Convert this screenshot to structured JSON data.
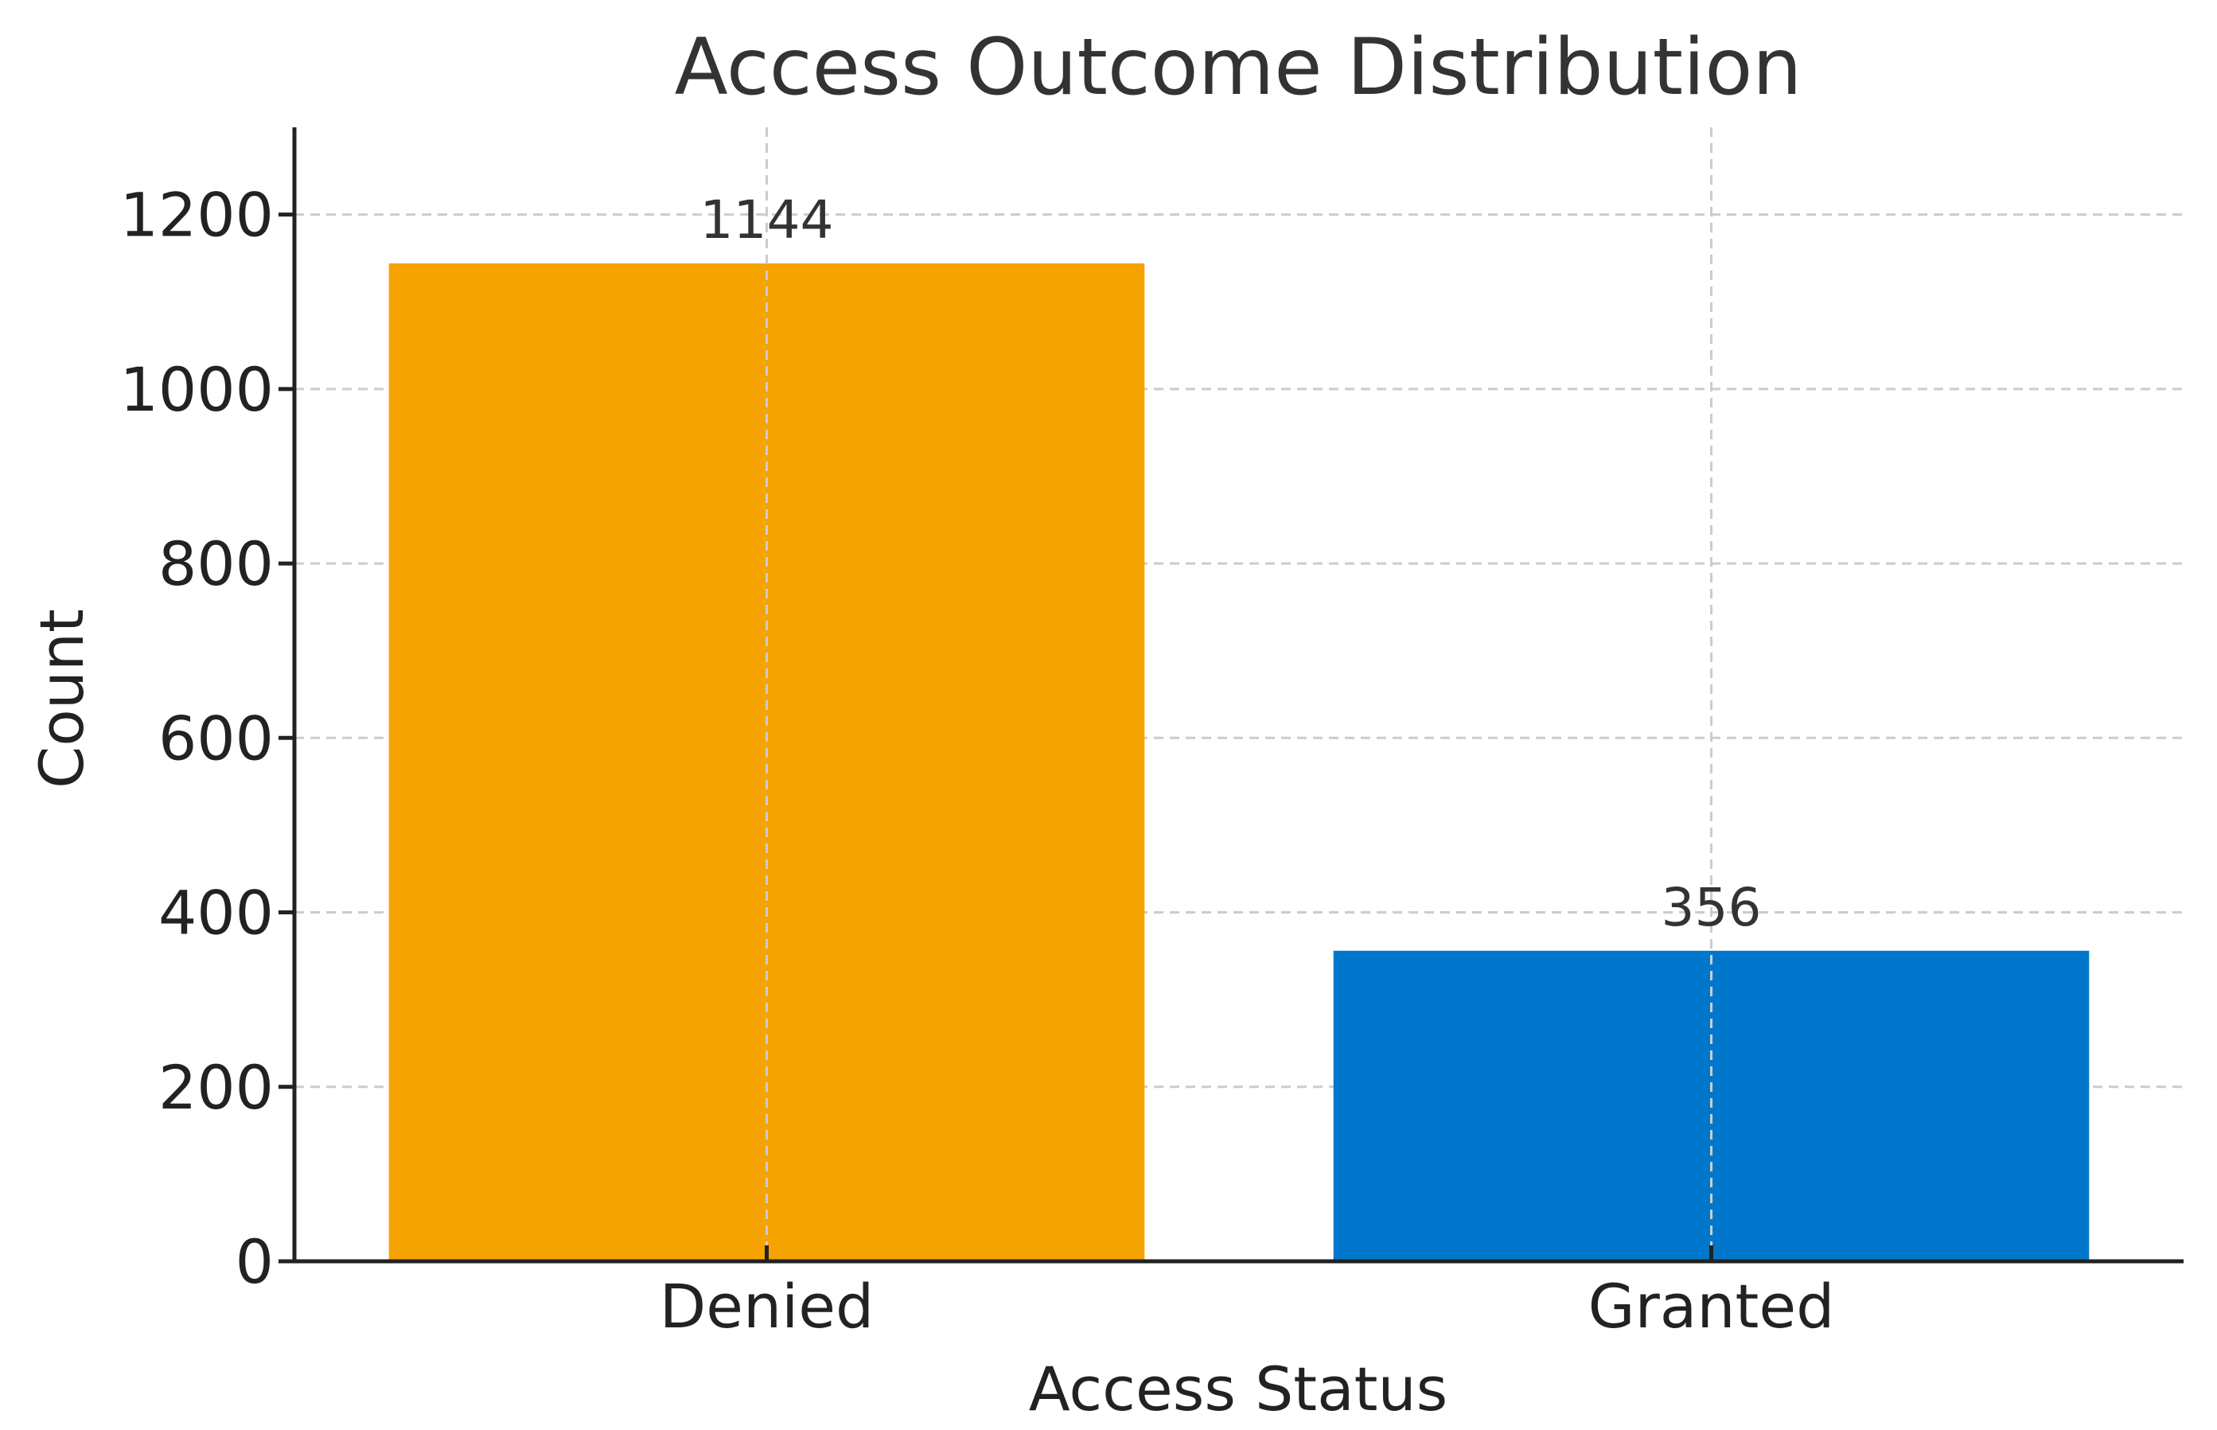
{
  "chart_data": {
    "type": "bar",
    "title": "Access Outcome Distribution",
    "xlabel": "Access Status",
    "ylabel": "Count",
    "categories": [
      "Denied",
      "Granted"
    ],
    "values": [
      1144,
      356
    ],
    "value_labels": [
      "1144",
      "356"
    ],
    "colors": [
      "#f4a300",
      "#0077cc"
    ],
    "ylim": [
      0,
      1300
    ],
    "yticks": [
      0,
      200,
      400,
      600,
      800,
      1000,
      1200
    ],
    "grid": true,
    "legend": "none"
  }
}
